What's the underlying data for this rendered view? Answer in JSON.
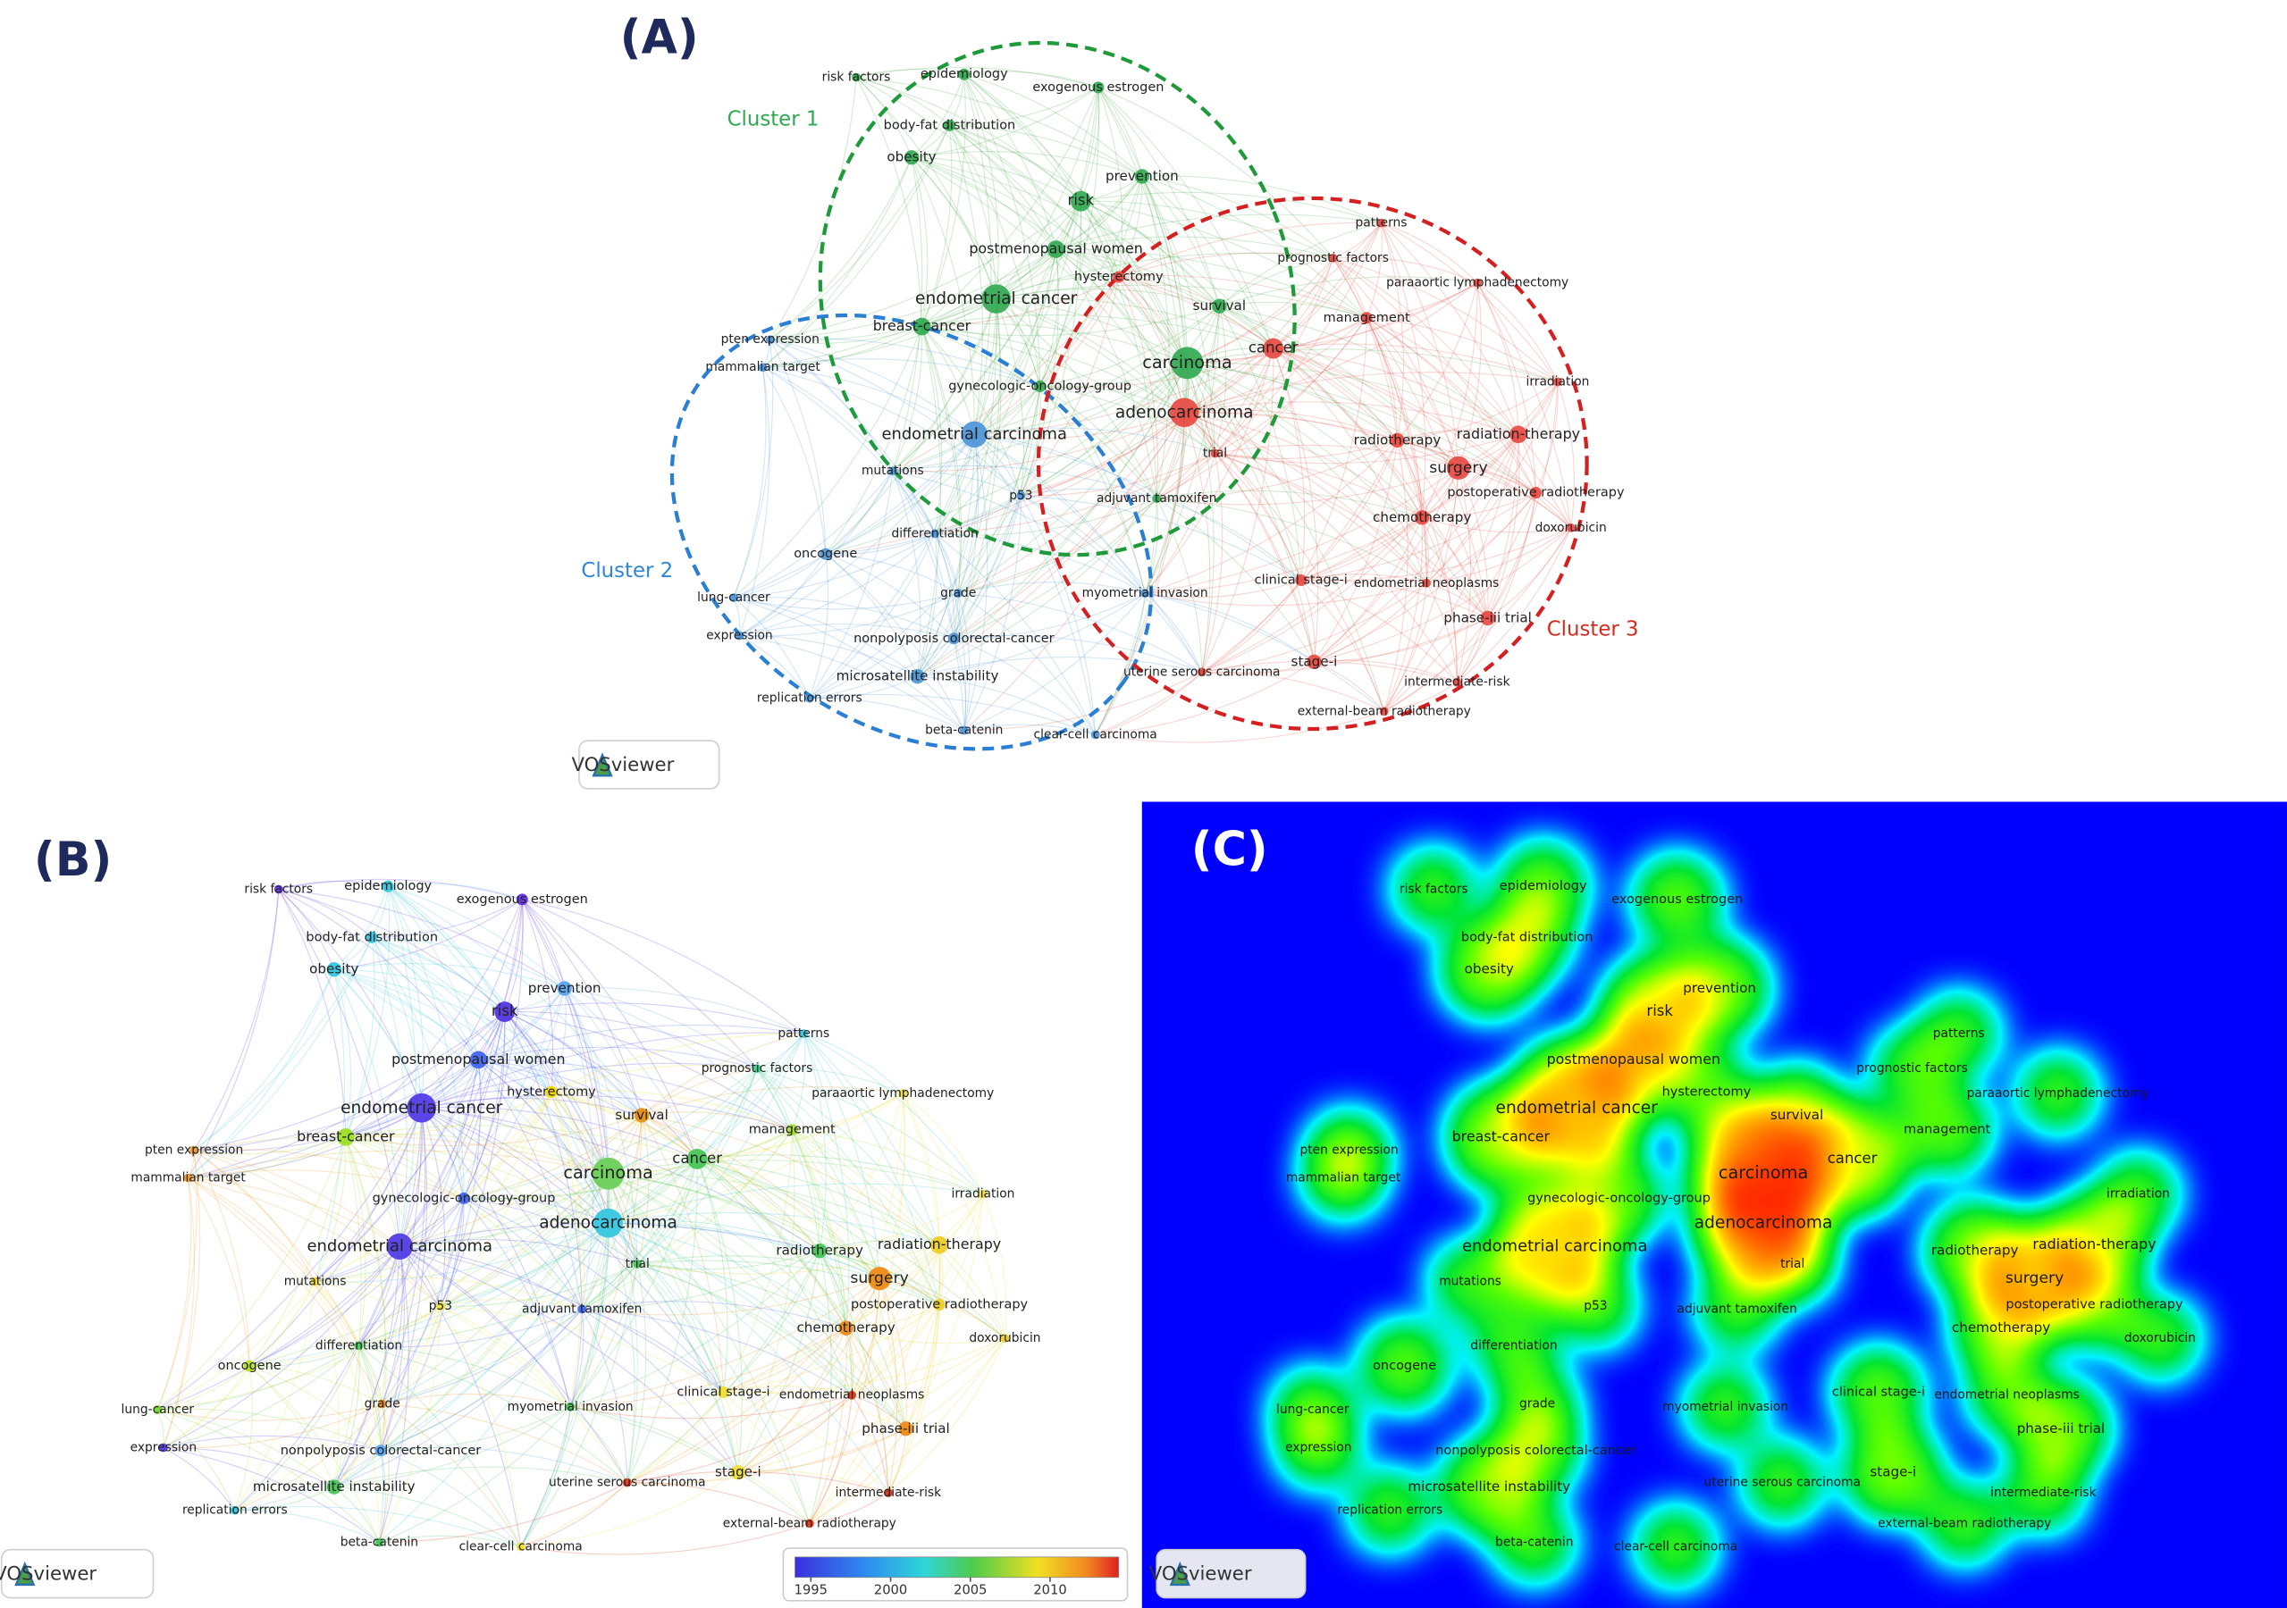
{
  "panels": [
    {
      "label": "(A)"
    },
    {
      "label": "(B)"
    },
    {
      "label": "(C)"
    }
  ],
  "clusters": [
    "Cluster 1",
    "Cluster 2",
    "Cluster 3"
  ],
  "nodes": [
    "risk factors",
    "epidemiology",
    "exogenous estrogen",
    "body-fat distribution",
    "obesity",
    "prevention",
    "risk",
    "postmenopausal women",
    "endometrial cancer",
    "hysterectomy",
    "survival",
    "breast-cancer",
    "patterns",
    "prognostic factors",
    "paraaortic lymphadenectomy",
    "management",
    "pten expression",
    "mammalian target",
    "carcinoma",
    "cancer",
    "gynecologic-oncology-group",
    "adenocarcinoma",
    "irradiation",
    "endometrial carcinoma",
    "radiotherapy",
    "radiation-therapy",
    "trial",
    "surgery",
    "mutations",
    "p53",
    "adjuvant tamoxifen",
    "postoperative radiotherapy",
    "doxorubicin",
    "chemotherapy",
    "differentiation",
    "oncogene",
    "clinical stage-i",
    "endometrial neoplasms",
    "grade",
    "myometrial invasion",
    "lung-cancer",
    "phase-iii trial",
    "expression",
    "nonpolyposis colorectal-cancer",
    "stage-i",
    "microsatellite instability",
    "uterine serous carcinoma",
    "intermediate-risk",
    "replication errors",
    "external-beam radiotherapy",
    "beta-catenin",
    "clear-cell carcinoma"
  ],
  "colorbar": {
    "range": [
      1994,
      2014.3
    ],
    "ticks": [
      1995,
      2000,
      2005,
      2010
    ]
  },
  "logo_text": "VOSviewer"
}
